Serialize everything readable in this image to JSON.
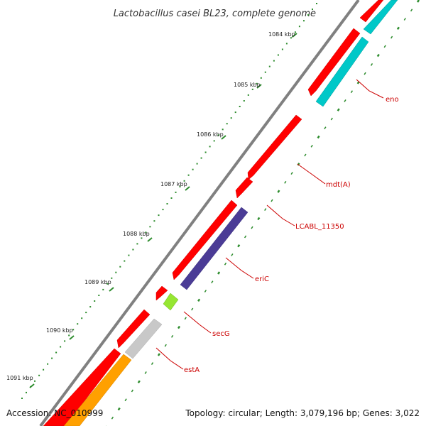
{
  "title": "Lactobacillus casei BL23, complete genome",
  "footer": {
    "accession": "Accession: NC_010999",
    "topology": "Topology: circular; Length: 3,079,196 bp; Genes: 3,022"
  },
  "scale_labels": [
    "1084 kbp",
    "1085 kbp",
    "1086 kbp",
    "1087 kbp",
    "1088 kbp",
    "1089 kbp",
    "1090 kbp",
    "1091 kbp"
  ],
  "genes": [
    {
      "name": "eno",
      "color": "#00c8c8"
    },
    {
      "name": "mdt(A)",
      "color": "#ff0000"
    },
    {
      "name": "LCABL_11350",
      "color": "#ff0000"
    },
    {
      "name": "eriC",
      "color": "#4b3c96"
    },
    {
      "name": "secG",
      "color": "#96e632"
    },
    {
      "name": "estA",
      "color": "#ffa000"
    }
  ],
  "colors": {
    "backbone": "#808080",
    "forward_gene": "#ff0000",
    "ruler_ticks": "#2d8c2d",
    "label_text": "#cc0000",
    "leader_line": "#cc0000",
    "grey_feature": "#c8c8c8"
  }
}
